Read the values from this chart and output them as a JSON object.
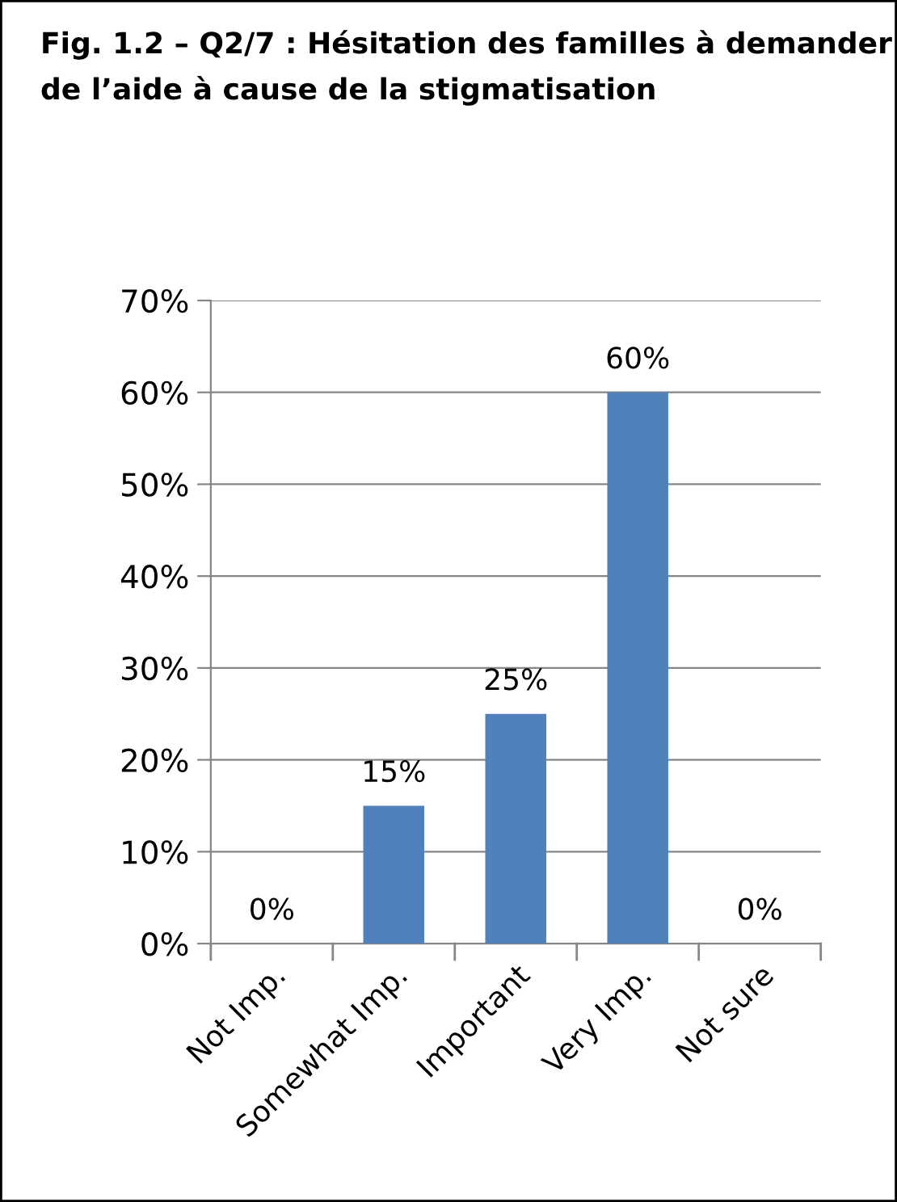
{
  "chart_data": {
    "type": "bar",
    "title": "Fig. 1.2 – Q2/7 : Hésitation des familles à demander de l’aide à cause de la stigmatisation",
    "categories": [
      "Not Imp.",
      "Somewhat Imp.",
      "Important",
      "Very Imp.",
      "Not sure"
    ],
    "values": [
      0,
      15,
      25,
      60,
      0
    ],
    "value_labels": [
      "0%",
      "15%",
      "25%",
      "60%",
      "0%"
    ],
    "color": "#4f81bd",
    "ylim": [
      0,
      70
    ],
    "yticks": [
      {
        "value": 0,
        "label": "0%"
      },
      {
        "value": 10,
        "label": "10%"
      },
      {
        "value": 20,
        "label": "20%"
      },
      {
        "value": 30,
        "label": "30%"
      },
      {
        "value": 40,
        "label": "40%"
      },
      {
        "value": 50,
        "label": "50%"
      },
      {
        "value": 60,
        "label": "60%"
      },
      {
        "value": 70,
        "label": "70%"
      }
    ],
    "grid": "y"
  }
}
